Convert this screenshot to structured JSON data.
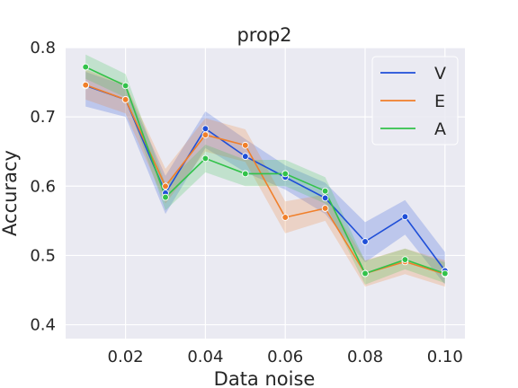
{
  "chart_data": {
    "type": "line",
    "title": "prop2",
    "xlabel": "Data noise",
    "ylabel": "Accuracy",
    "xlim": [
      0.005,
      0.105
    ],
    "ylim": [
      0.38,
      0.8
    ],
    "xticks": [
      "0.02",
      "0.04",
      "0.06",
      "0.08",
      "0.10"
    ],
    "xtick_values": [
      0.02,
      0.04,
      0.06,
      0.08,
      0.1
    ],
    "yticks": [
      "0.4",
      "0.5",
      "0.6",
      "0.7",
      "0.8"
    ],
    "ytick_values": [
      0.4,
      0.5,
      0.6,
      0.7,
      0.8
    ],
    "grid": true,
    "legend_position": "top-right",
    "x": [
      0.01,
      0.02,
      0.03,
      0.04,
      0.05,
      0.06,
      0.07,
      0.08,
      0.09,
      0.1
    ],
    "series": [
      {
        "name": "V",
        "color": "#1f4fd8",
        "values": [
          0.745,
          0.725,
          0.59,
          0.683,
          0.643,
          0.613,
          0.583,
          0.52,
          0.556,
          0.478
        ],
        "lower": [
          0.715,
          0.7,
          0.56,
          0.655,
          0.62,
          0.595,
          0.56,
          0.49,
          0.53,
          0.458
        ],
        "upper": [
          0.765,
          0.745,
          0.615,
          0.708,
          0.668,
          0.63,
          0.605,
          0.548,
          0.58,
          0.505
        ]
      },
      {
        "name": "E",
        "color": "#f07f2a",
        "values": [
          0.746,
          0.725,
          0.6,
          0.674,
          0.659,
          0.555,
          0.568,
          0.474,
          0.491,
          0.473
        ],
        "lower": [
          0.725,
          0.705,
          0.575,
          0.65,
          0.635,
          0.532,
          0.55,
          0.455,
          0.473,
          0.455
        ],
        "upper": [
          0.768,
          0.748,
          0.625,
          0.698,
          0.682,
          0.578,
          0.588,
          0.493,
          0.51,
          0.493
        ]
      },
      {
        "name": "A",
        "color": "#32c24a",
        "values": [
          0.772,
          0.745,
          0.584,
          0.64,
          0.618,
          0.618,
          0.593,
          0.474,
          0.494,
          0.474
        ],
        "lower": [
          0.755,
          0.728,
          0.565,
          0.62,
          0.6,
          0.6,
          0.575,
          0.458,
          0.48,
          0.46
        ],
        "upper": [
          0.79,
          0.762,
          0.603,
          0.66,
          0.638,
          0.638,
          0.613,
          0.492,
          0.51,
          0.49
        ]
      }
    ]
  }
}
